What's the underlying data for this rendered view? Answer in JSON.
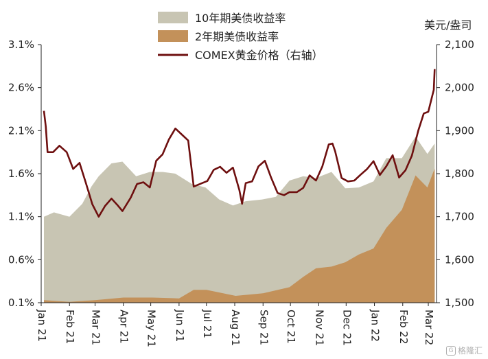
{
  "chart_data": {
    "type": "area",
    "title": "",
    "xlabel": "",
    "ylabel": "",
    "right_axis_unit": "美元/盎司",
    "x_months": [
      "2021-01",
      "2021-02",
      "2021-03",
      "2021-04",
      "2021-05",
      "2021-06",
      "2021-07",
      "2021-08",
      "2021-09",
      "2021-10",
      "2021-11",
      "2021-12",
      "2022-01",
      "2022-02",
      "2022-03"
    ],
    "x_tick_labels": [
      "Jan 21",
      "Feb 21",
      "Mar 21",
      "Apr 21",
      "May 21",
      "Jun 21",
      "Jul 21",
      "Aug 21",
      "Sep 21",
      "Oct 21",
      "Nov 21",
      "Dec 21",
      "Jan 22",
      "Feb 22",
      "Mar 22"
    ],
    "x_range": [
      "2021-01-01",
      "2022-03-10"
    ],
    "y_left_ticks": [
      "0.1%",
      "0.6%",
      "1.1%",
      "1.6%",
      "2.1%",
      "2.6%",
      "3.1%"
    ],
    "y_left_range": [
      0.1,
      3.1
    ],
    "y_right_ticks": [
      "1,500",
      "1,600",
      "1,700",
      "1,800",
      "1,900",
      "2,000",
      "2,100"
    ],
    "y_right_range": [
      1500,
      2100
    ],
    "legend_position": "top",
    "series": [
      {
        "name": "10年期美债收益率",
        "kind": "area",
        "axis": "left",
        "color": "#c8c5b3",
        "x": [
          "2021-01-04",
          "2021-01-15",
          "2021-02-01",
          "2021-02-15",
          "2021-02-25",
          "2021-03-05",
          "2021-03-19",
          "2021-03-31",
          "2021-04-15",
          "2021-04-30",
          "2021-05-14",
          "2021-05-28",
          "2021-06-15",
          "2021-06-30",
          "2021-07-15",
          "2021-07-30",
          "2021-08-13",
          "2021-08-31",
          "2021-09-15",
          "2021-09-30",
          "2021-10-15",
          "2021-10-29",
          "2021-11-15",
          "2021-11-30",
          "2021-12-15",
          "2021-12-31",
          "2022-01-14",
          "2022-01-31",
          "2022-02-15",
          "2022-02-28",
          "2022-03-08"
        ],
        "values": [
          1.1,
          1.15,
          1.1,
          1.25,
          1.45,
          1.57,
          1.72,
          1.74,
          1.57,
          1.62,
          1.62,
          1.6,
          1.48,
          1.44,
          1.3,
          1.23,
          1.28,
          1.3,
          1.33,
          1.52,
          1.57,
          1.55,
          1.62,
          1.43,
          1.44,
          1.51,
          1.78,
          1.78,
          2.03,
          1.83,
          1.95
        ]
      },
      {
        "name": "2年期美债收益率",
        "kind": "area",
        "axis": "left",
        "color": "#c3915a",
        "x": [
          "2021-01-04",
          "2021-02-01",
          "2021-03-01",
          "2021-04-01",
          "2021-05-03",
          "2021-06-01",
          "2021-06-17",
          "2021-07-01",
          "2021-08-02",
          "2021-09-01",
          "2021-09-30",
          "2021-10-15",
          "2021-10-29",
          "2021-11-15",
          "2021-11-30",
          "2021-12-15",
          "2021-12-31",
          "2022-01-14",
          "2022-01-31",
          "2022-02-15",
          "2022-02-28",
          "2022-03-08"
        ],
        "values": [
          0.13,
          0.11,
          0.13,
          0.16,
          0.16,
          0.15,
          0.25,
          0.25,
          0.18,
          0.21,
          0.28,
          0.4,
          0.5,
          0.52,
          0.57,
          0.66,
          0.73,
          0.97,
          1.18,
          1.58,
          1.44,
          1.66
        ]
      },
      {
        "name": "COMEX黄金价格（右轴）",
        "kind": "line",
        "axis": "right",
        "color": "#6e0f0f",
        "x": [
          "2021-01-04",
          "2021-01-06",
          "2021-01-08",
          "2021-01-14",
          "2021-01-21",
          "2021-01-29",
          "2021-02-05",
          "2021-02-12",
          "2021-02-19",
          "2021-02-26",
          "2021-03-05",
          "2021-03-12",
          "2021-03-19",
          "2021-03-26",
          "2021-03-31",
          "2021-04-09",
          "2021-04-16",
          "2021-04-23",
          "2021-04-30",
          "2021-05-07",
          "2021-05-14",
          "2021-05-21",
          "2021-05-28",
          "2021-06-04",
          "2021-06-11",
          "2021-06-17",
          "2021-06-25",
          "2021-07-02",
          "2021-07-09",
          "2021-07-16",
          "2021-07-23",
          "2021-07-30",
          "2021-08-06",
          "2021-08-09",
          "2021-08-13",
          "2021-08-20",
          "2021-08-27",
          "2021-09-03",
          "2021-09-10",
          "2021-09-17",
          "2021-09-24",
          "2021-09-30",
          "2021-10-08",
          "2021-10-15",
          "2021-10-22",
          "2021-10-29",
          "2021-11-05",
          "2021-11-12",
          "2021-11-16",
          "2021-11-19",
          "2021-11-26",
          "2021-12-03",
          "2021-12-10",
          "2021-12-17",
          "2021-12-24",
          "2021-12-31",
          "2022-01-07",
          "2022-01-14",
          "2022-01-21",
          "2022-01-28",
          "2022-02-04",
          "2022-02-11",
          "2022-02-18",
          "2022-02-24",
          "2022-03-01",
          "2022-03-07",
          "2022-03-08"
        ],
        "values": [
          1946,
          1910,
          1850,
          1850,
          1865,
          1850,
          1811,
          1825,
          1778,
          1729,
          1700,
          1725,
          1742,
          1726,
          1713,
          1744,
          1776,
          1780,
          1768,
          1830,
          1845,
          1880,
          1905,
          1891,
          1877,
          1770,
          1777,
          1783,
          1809,
          1816,
          1802,
          1814,
          1762,
          1730,
          1778,
          1782,
          1817,
          1830,
          1790,
          1755,
          1750,
          1757,
          1757,
          1767,
          1796,
          1784,
          1817,
          1868,
          1870,
          1852,
          1790,
          1782,
          1784,
          1798,
          1811,
          1829,
          1797,
          1817,
          1843,
          1791,
          1808,
          1842,
          1900,
          1940,
          1944,
          1995,
          2043
        ]
      }
    ]
  },
  "watermark": {
    "icon_char": "G",
    "text": "格隆汇"
  }
}
